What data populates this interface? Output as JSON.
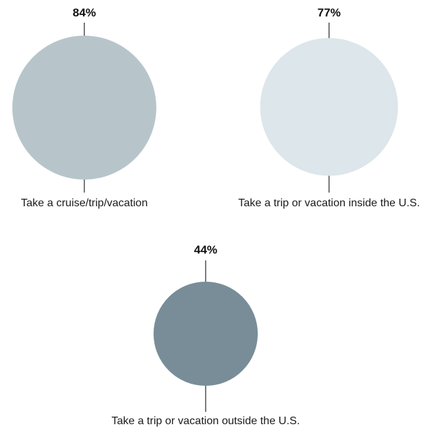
{
  "chart_data": {
    "type": "bubble",
    "title": "",
    "value_suffix": "%",
    "items": [
      {
        "label": "Take a cruise/trip/vacation",
        "value": 84,
        "value_label": "84%",
        "color": "#b7c5cb"
      },
      {
        "label": "Take a trip or vacation inside the U.S.",
        "value": 77,
        "value_label": "77%",
        "color": "#dde6ea"
      },
      {
        "label": "Take a trip or vacation outside the U.S.",
        "value": 44,
        "value_label": "44%",
        "color": "#788d98"
      }
    ]
  }
}
